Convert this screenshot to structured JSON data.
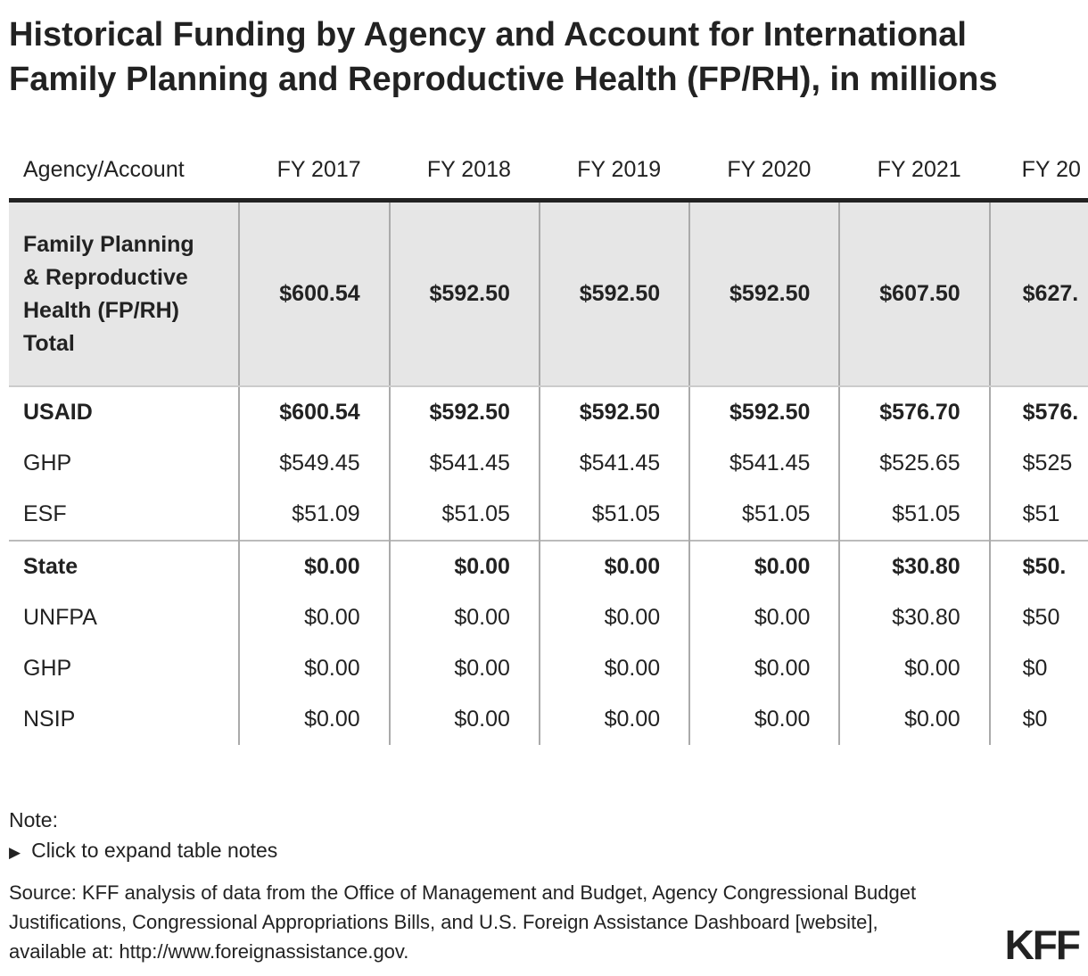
{
  "title": "Historical Funding by Agency and Account for International Family Planning and Reproductive Health (FP/RH), in millions",
  "table": {
    "header": [
      "Agency/Account",
      "FY 2017",
      "FY 2018",
      "FY 2019",
      "FY 2020",
      "FY 2021",
      "FY 20"
    ],
    "rows": [
      [
        "Family Planning & Reproductive Health (FP/RH) Total",
        "$600.54",
        "$592.50",
        "$592.50",
        "$592.50",
        "$607.50",
        "$627."
      ],
      [
        "USAID",
        "$600.54",
        "$592.50",
        "$592.50",
        "$592.50",
        "$576.70",
        "$576."
      ],
      [
        "GHP",
        "$549.45",
        "$541.45",
        "$541.45",
        "$541.45",
        "$525.65",
        "$525"
      ],
      [
        "ESF",
        "$51.09",
        "$51.05",
        "$51.05",
        "$51.05",
        "$51.05",
        "$51"
      ],
      [
        "State",
        "$0.00",
        "$0.00",
        "$0.00",
        "$0.00",
        "$30.80",
        "$50."
      ],
      [
        "UNFPA",
        "$0.00",
        "$0.00",
        "$0.00",
        "$0.00",
        "$30.80",
        "$50"
      ],
      [
        "GHP",
        "$0.00",
        "$0.00",
        "$0.00",
        "$0.00",
        "$0.00",
        "$0"
      ],
      [
        "NSIP",
        "$0.00",
        "$0.00",
        "$0.00",
        "$0.00",
        "$0.00",
        "$0"
      ]
    ]
  },
  "notes": {
    "label": "Note:",
    "toggle": "Click to expand table notes"
  },
  "source": "Source: KFF analysis of data from the Office of Management and Budget, Agency Congressional Budget Justifications, Congressional Appropriations Bills, and U.S. Foreign Assistance Dashboard [website], available at: http://www.foreignassistance.gov.",
  "logo": "KFF"
}
